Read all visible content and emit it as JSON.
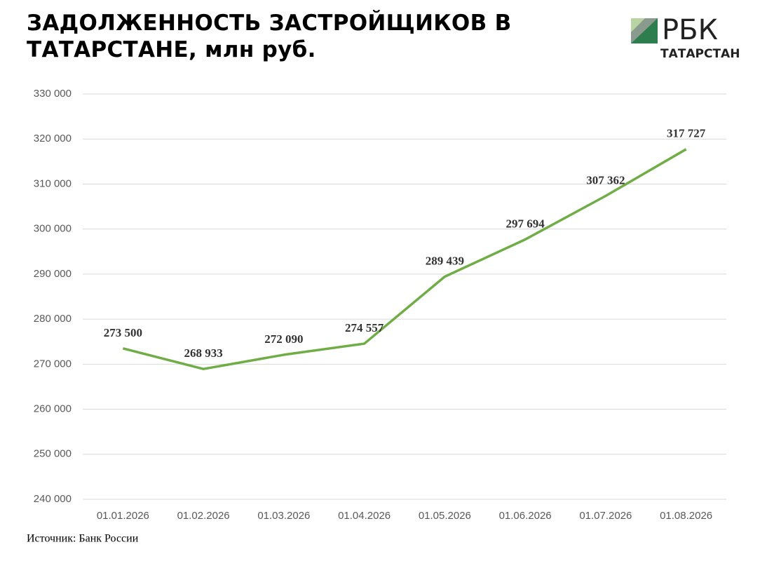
{
  "title": "ЗАДОЛЖЕННОСТЬ ЗАСТРОЙЩИКОВ В ТАТАРСТАНЕ, млн руб.",
  "logo": {
    "name": "РБК",
    "region": "ТАТАРСТАН"
  },
  "source": "Источник: Банк России",
  "chart_data": {
    "type": "line",
    "categories": [
      "01.01.2026",
      "01.02.2026",
      "01.03.2026",
      "01.04.2026",
      "01.05.2026",
      "01.06.2026",
      "01.07.2026",
      "01.08.2026"
    ],
    "values": [
      273500,
      268933,
      272090,
      274557,
      289439,
      297694,
      307362,
      317727
    ],
    "value_labels": [
      "273 500",
      "268 933",
      "272 090",
      "274 557",
      "289 439",
      "297 694",
      "307 362",
      "317 727"
    ],
    "color": "#70ad47",
    "ylim": [
      240000,
      330000
    ],
    "yticks": [
      {
        "value": 240000,
        "label": "240 000"
      },
      {
        "value": 250000,
        "label": "250 000"
      },
      {
        "value": 260000,
        "label": "260 000"
      },
      {
        "value": 270000,
        "label": "270 000"
      },
      {
        "value": 280000,
        "label": "280 000"
      },
      {
        "value": 290000,
        "label": "290 000"
      },
      {
        "value": 300000,
        "label": "300 000"
      },
      {
        "value": 310000,
        "label": "310 000"
      },
      {
        "value": 320000,
        "label": "320 000"
      },
      {
        "value": 330000,
        "label": "330 000"
      }
    ],
    "grid": true
  }
}
